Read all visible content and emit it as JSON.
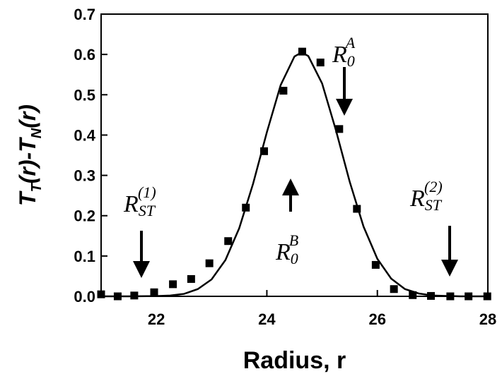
{
  "chart_data": {
    "type": "scatter",
    "xlabel": "Radius, r",
    "ylabel": [
      "T",
      "T",
      "(r)-T",
      "N",
      "(r)"
    ],
    "x": [
      21.0,
      21.3,
      21.6,
      21.96,
      22.3,
      22.63,
      22.96,
      23.3,
      23.62,
      23.95,
      24.3,
      24.64,
      24.97,
      25.31,
      25.63,
      25.97,
      26.3,
      26.64,
      26.97,
      27.32,
      27.65,
      27.99
    ],
    "values": [
      0.005,
      0,
      0.002,
      0.01,
      0.03,
      0.043,
      0.082,
      0.137,
      0.22,
      0.36,
      0.51,
      0.607,
      0.58,
      0.415,
      0.217,
      0.078,
      0.018,
      0.003,
      0.001,
      0,
      0,
      0
    ],
    "color": "#000000",
    "fit": {
      "x": [
        21,
        21.5,
        22,
        22.25,
        22.5,
        22.75,
        23,
        23.25,
        23.5,
        23.75,
        24,
        24.25,
        24.5,
        24.63,
        24.75,
        25,
        25.25,
        25.5,
        25.75,
        26,
        26.25,
        26.5,
        26.75,
        27,
        27.5,
        28
      ],
      "values": [
        0,
        0,
        0.0006,
        0.002,
        0.006,
        0.018,
        0.042,
        0.09,
        0.169,
        0.279,
        0.407,
        0.524,
        0.595,
        0.605,
        0.596,
        0.528,
        0.412,
        0.284,
        0.173,
        0.093,
        0.044,
        0.018,
        0.007,
        0.002,
        0,
        0
      ],
      "color": "#000000"
    },
    "xlim": [
      21,
      28
    ],
    "ylim": [
      0,
      0.7
    ],
    "xticks": [
      22,
      24,
      26,
      28
    ],
    "yticks": [
      {
        "value": 0,
        "label": "0.0"
      },
      0.1,
      0.2,
      0.3,
      0.4,
      0.5,
      0.6,
      0.7
    ],
    "annotations": [
      {
        "base": "R",
        "sub": "0",
        "sup": "A"
      },
      {
        "base": "R",
        "sub": "0",
        "sup": "B"
      },
      {
        "base": "R",
        "sub": "ST",
        "sup": "(1)"
      },
      {
        "base": "R",
        "sub": "ST",
        "sup": "(2)"
      }
    ]
  }
}
